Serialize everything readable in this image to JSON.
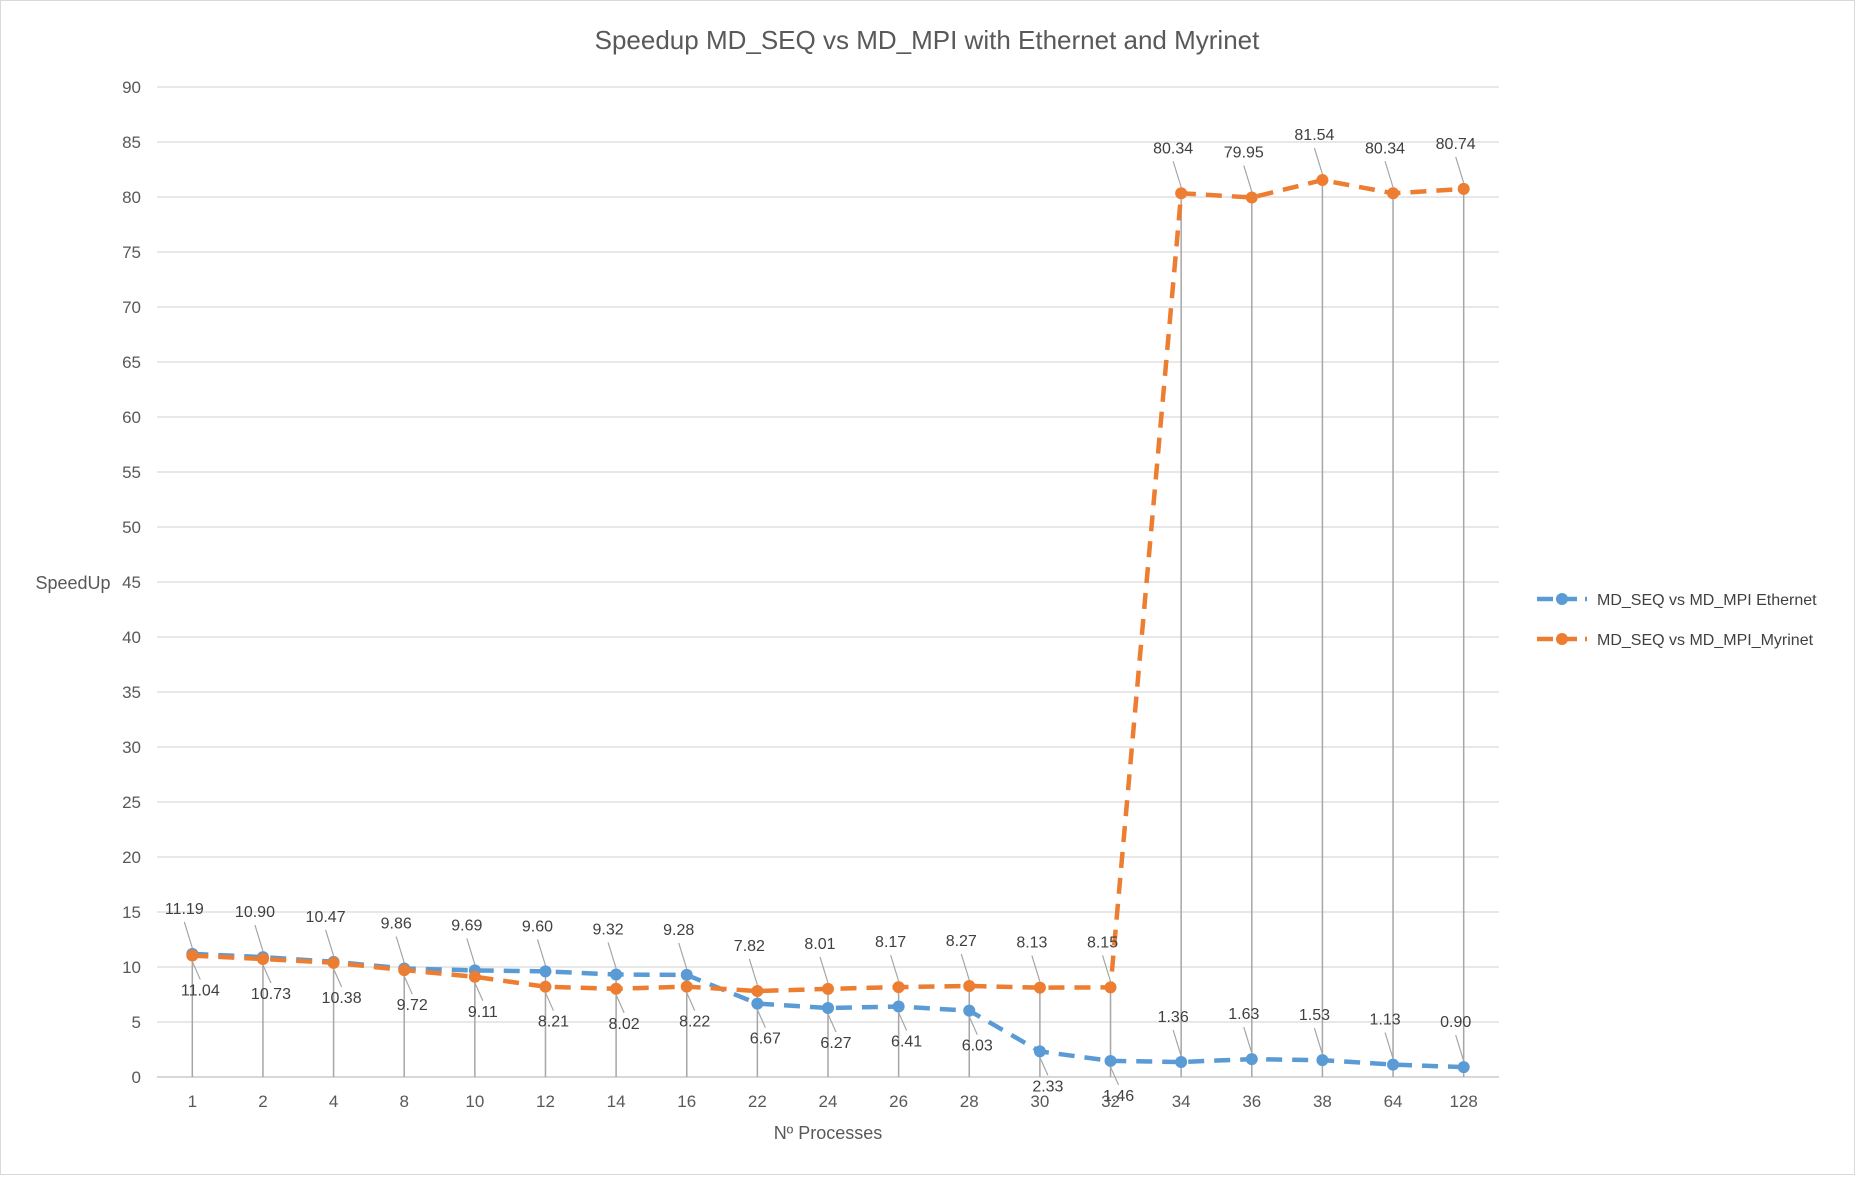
{
  "chart_data": {
    "type": "line",
    "title": "Speedup MD_SEQ vs MD_MPI with Ethernet and Myrinet",
    "xlabel": "Nº Processes",
    "ylabel": "SpeedUp",
    "ylim": [
      0,
      90
    ],
    "ytick_step": 5,
    "grid": true,
    "drop_lines": true,
    "legend_position": "right",
    "categories": [
      "1",
      "2",
      "4",
      "8",
      "10",
      "12",
      "14",
      "16",
      "22",
      "24",
      "26",
      "28",
      "30",
      "32",
      "34",
      "36",
      "38",
      "64",
      "128"
    ],
    "series": [
      {
        "name": "MD_SEQ vs MD_MPI Ethernet",
        "color": "#5B9BD5",
        "line_style": "dashed",
        "values": [
          11.19,
          10.9,
          10.47,
          9.86,
          9.69,
          9.6,
          9.32,
          9.28,
          6.67,
          6.27,
          6.41,
          6.03,
          2.33,
          1.46,
          1.36,
          1.63,
          1.53,
          1.13,
          0.9
        ],
        "labels": [
          "11.19",
          "10.90",
          "10.47",
          "9.86",
          "9.69",
          "9.60",
          "9.32",
          "9.28",
          "6.67",
          "6.27",
          "6.41",
          "6.03",
          "2.33",
          "1.46",
          "1.36",
          "1.63",
          "1.53",
          "1.13",
          "0.90"
        ]
      },
      {
        "name": "MD_SEQ vs MD_MPI_Myrinet",
        "color": "#ED7D31",
        "line_style": "dashed",
        "values": [
          11.04,
          10.73,
          10.38,
          9.72,
          9.11,
          8.21,
          8.02,
          8.22,
          7.82,
          8.01,
          8.17,
          8.27,
          8.13,
          8.15,
          80.34,
          79.95,
          81.54,
          80.34,
          80.74
        ],
        "labels": [
          "11.04",
          "10.73",
          "10.38",
          "9.72",
          "9.11",
          "8.21",
          "8.02",
          "8.22",
          "7.82",
          "8.01",
          "8.17",
          "8.27",
          "8.13",
          "8.15",
          "80.34",
          "79.95",
          "81.54",
          "80.34",
          "80.74"
        ]
      }
    ]
  }
}
